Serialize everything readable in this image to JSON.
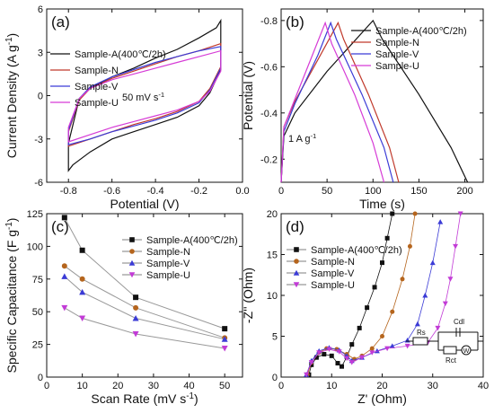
{
  "chart_data": [
    {
      "panel": "(a)",
      "type": "line",
      "xlabel": "Potential (V)",
      "ylabel": "Current Density (A g",
      "ylabel_sup": "-1",
      "ylabel_end": ")",
      "xlim": [
        -0.9,
        0.0
      ],
      "ylim": [
        -6,
        6
      ],
      "xticks": [
        "-0.8",
        "-0.6",
        "-0.4",
        "-0.2",
        "0.0"
      ],
      "yticks": [
        "-6",
        "-3",
        "0",
        "3",
        "6"
      ],
      "annotation": "50 mV s",
      "annotation_sup": "-1",
      "legend": [
        "Sample-A(400℃/2h)",
        "Sample-N",
        "Sample-V",
        "Sample-U"
      ],
      "series": [
        {
          "name": "Sample-A(400℃/2h)",
          "color": "#111111",
          "upper": [
            [
              -0.8,
              -3.3
            ],
            [
              -0.75,
              -0.2
            ],
            [
              -0.7,
              0.5
            ],
            [
              -0.6,
              1.3
            ],
            [
              -0.5,
              1.9
            ],
            [
              -0.4,
              2.6
            ],
            [
              -0.3,
              3.2
            ],
            [
              -0.2,
              4.0
            ],
            [
              -0.12,
              4.7
            ],
            [
              -0.1,
              5.2
            ]
          ],
          "lower": [
            [
              -0.1,
              1.8
            ],
            [
              -0.15,
              0.2
            ],
            [
              -0.2,
              -0.7
            ],
            [
              -0.3,
              -1.5
            ],
            [
              -0.4,
              -2.0
            ],
            [
              -0.5,
              -2.5
            ],
            [
              -0.6,
              -3.0
            ],
            [
              -0.7,
              -3.9
            ],
            [
              -0.78,
              -4.8
            ],
            [
              -0.8,
              -5.2
            ]
          ]
        },
        {
          "name": "Sample-N",
          "color": "#c0392b",
          "upper": [
            [
              -0.8,
              -2.5
            ],
            [
              -0.75,
              -0.3
            ],
            [
              -0.7,
              0.5
            ],
            [
              -0.6,
              1.2
            ],
            [
              -0.5,
              1.7
            ],
            [
              -0.4,
              2.2
            ],
            [
              -0.3,
              2.7
            ],
            [
              -0.2,
              3.1
            ],
            [
              -0.1,
              3.6
            ]
          ],
          "lower": [
            [
              -0.1,
              2.0
            ],
            [
              -0.15,
              0.5
            ],
            [
              -0.2,
              -0.4
            ],
            [
              -0.3,
              -1.1
            ],
            [
              -0.4,
              -1.6
            ],
            [
              -0.5,
              -2.0
            ],
            [
              -0.6,
              -2.5
            ],
            [
              -0.7,
              -3.0
            ],
            [
              -0.8,
              -3.5
            ]
          ]
        },
        {
          "name": "Sample-V",
          "color": "#3b3bd6",
          "upper": [
            [
              -0.8,
              -2.4
            ],
            [
              -0.75,
              -0.2
            ],
            [
              -0.7,
              0.6
            ],
            [
              -0.6,
              1.3
            ],
            [
              -0.5,
              1.8
            ],
            [
              -0.4,
              2.3
            ],
            [
              -0.3,
              2.7
            ],
            [
              -0.2,
              3.1
            ],
            [
              -0.1,
              3.4
            ]
          ],
          "lower": [
            [
              -0.1,
              1.9
            ],
            [
              -0.15,
              0.4
            ],
            [
              -0.2,
              -0.5
            ],
            [
              -0.3,
              -1.2
            ],
            [
              -0.4,
              -1.7
            ],
            [
              -0.5,
              -2.1
            ],
            [
              -0.6,
              -2.5
            ],
            [
              -0.7,
              -3.0
            ],
            [
              -0.8,
              -3.4
            ]
          ]
        },
        {
          "name": "Sample-U",
          "color": "#d63bd6",
          "upper": [
            [
              -0.8,
              -2.2
            ],
            [
              -0.75,
              -0.2
            ],
            [
              -0.7,
              0.5
            ],
            [
              -0.6,
              1.1
            ],
            [
              -0.5,
              1.5
            ],
            [
              -0.4,
              1.9
            ],
            [
              -0.3,
              2.3
            ],
            [
              -0.2,
              2.7
            ],
            [
              -0.1,
              3.1
            ]
          ],
          "lower": [
            [
              -0.1,
              1.7
            ],
            [
              -0.15,
              0.3
            ],
            [
              -0.2,
              -0.4
            ],
            [
              -0.3,
              -1.0
            ],
            [
              -0.4,
              -1.4
            ],
            [
              -0.5,
              -1.8
            ],
            [
              -0.6,
              -2.2
            ],
            [
              -0.7,
              -2.7
            ],
            [
              -0.8,
              -3.2
            ]
          ]
        }
      ]
    },
    {
      "panel": "(b)",
      "type": "line",
      "xlabel": "Time (s)",
      "ylabel": "Potential (V)",
      "xlim": [
        0,
        220
      ],
      "ylim": [
        -0.1,
        -0.85
      ],
      "xticks": [
        "0",
        "50",
        "100",
        "150",
        "200"
      ],
      "yticks": [
        "-0.2",
        "-0.4",
        "-0.6",
        "-0.8"
      ],
      "annotation": "1 A g",
      "annotation_sup": "-1",
      "legend": [
        "Sample-A(400℃/2h)",
        "Sample-N",
        "Sample-V",
        "Sample-U"
      ],
      "series": [
        {
          "name": "Sample-A(400℃/2h)",
          "color": "#111111",
          "points": [
            [
              0,
              -0.1
            ],
            [
              3,
              -0.3
            ],
            [
              15,
              -0.4
            ],
            [
              50,
              -0.58
            ],
            [
              100,
              -0.8
            ],
            [
              110,
              -0.72
            ],
            [
              150,
              -0.48
            ],
            [
              185,
              -0.25
            ],
            [
              203,
              -0.1
            ]
          ]
        },
        {
          "name": "Sample-N",
          "color": "#c0392b",
          "points": [
            [
              0,
              -0.1
            ],
            [
              3,
              -0.34
            ],
            [
              15,
              -0.45
            ],
            [
              40,
              -0.63
            ],
            [
              62,
              -0.79
            ],
            [
              68,
              -0.72
            ],
            [
              95,
              -0.48
            ],
            [
              118,
              -0.25
            ],
            [
              128,
              -0.1
            ]
          ]
        },
        {
          "name": "Sample-V",
          "color": "#3b3bd6",
          "points": [
            [
              0,
              -0.1
            ],
            [
              3,
              -0.32
            ],
            [
              15,
              -0.44
            ],
            [
              40,
              -0.65
            ],
            [
              54,
              -0.79
            ],
            [
              60,
              -0.72
            ],
            [
              88,
              -0.48
            ],
            [
              112,
              -0.25
            ],
            [
              122,
              -0.1
            ]
          ]
        },
        {
          "name": "Sample-U",
          "color": "#d63bd6",
          "points": [
            [
              0,
              -0.1
            ],
            [
              3,
              -0.34
            ],
            [
              15,
              -0.46
            ],
            [
              35,
              -0.66
            ],
            [
              48,
              -0.79
            ],
            [
              55,
              -0.7
            ],
            [
              80,
              -0.48
            ],
            [
              100,
              -0.27
            ],
            [
              112,
              -0.1
            ]
          ]
        }
      ]
    },
    {
      "panel": "(c)",
      "type": "line",
      "xlabel": "Scan Rate (mV s",
      "xlabel_sup": "-1",
      "xlabel_end": ")",
      "ylabel": "Specific Capacitance (F g",
      "ylabel_sup": "-1",
      "ylabel_end": ")",
      "xlim": [
        0,
        55
      ],
      "ylim": [
        0,
        125
      ],
      "xticks": [
        "0",
        "10",
        "20",
        "30",
        "40",
        "50"
      ],
      "yticks": [
        "0",
        "25",
        "50",
        "75",
        "100",
        "125"
      ],
      "x": [
        5,
        10,
        25,
        50
      ],
      "legend": [
        "Sample-A(400℃/2h)",
        "Sample-N",
        "Sample-V",
        "Sample-U"
      ],
      "series": [
        {
          "name": "Sample-A(400℃/2h)",
          "color": "#111111",
          "marker": "square",
          "values": [
            122,
            97,
            61,
            37
          ]
        },
        {
          "name": "Sample-N",
          "color": "#b5651d",
          "marker": "circle",
          "values": [
            85,
            75,
            53,
            30
          ]
        },
        {
          "name": "Sample-V",
          "color": "#3b3bd6",
          "marker": "triangle",
          "values": [
            77,
            65,
            45,
            29
          ]
        },
        {
          "name": "Sample-U",
          "color": "#c23bd6",
          "marker": "down-triangle",
          "values": [
            53,
            45,
            33,
            22
          ]
        }
      ]
    },
    {
      "panel": "(d)",
      "type": "scatter",
      "xlabel": "Z' (Ohm)",
      "ylabel": "-Z'' (Ohm)",
      "xlim": [
        0,
        40
      ],
      "ylim": [
        0,
        20
      ],
      "xticks": [
        "0",
        "10",
        "20",
        "30",
        "40"
      ],
      "yticks": [
        "0",
        "5",
        "10",
        "15",
        "20"
      ],
      "legend": [
        "Sample-A(400℃/2h)",
        "Sample-N",
        "Sample-V",
        "Sample-U"
      ],
      "circuit_labels": [
        "Rs",
        "Cdl",
        "Rct",
        "W"
      ],
      "series": [
        {
          "name": "Sample-A(400℃/2h)",
          "color": "#111111",
          "marker": "square",
          "points": [
            [
              5.5,
              0.3
            ],
            [
              6,
              1.5
            ],
            [
              7,
              2.4
            ],
            [
              8.5,
              2.8
            ],
            [
              10,
              2.6
            ],
            [
              11.2,
              1.7
            ],
            [
              12,
              1.3
            ],
            [
              13,
              2.5
            ],
            [
              14,
              4
            ],
            [
              15.5,
              6
            ],
            [
              17,
              8.5
            ],
            [
              18.5,
              11
            ],
            [
              20,
              14
            ],
            [
              21,
              17
            ],
            [
              22,
              20
            ]
          ]
        },
        {
          "name": "Sample-N",
          "color": "#b5651d",
          "marker": "circle",
          "points": [
            [
              5.2,
              0.3
            ],
            [
              6,
              1.8
            ],
            [
              7.5,
              3
            ],
            [
              9,
              3.5
            ],
            [
              11,
              3.4
            ],
            [
              13,
              2.8
            ],
            [
              14.5,
              2.2
            ],
            [
              16,
              2.6
            ],
            [
              18,
              3.5
            ],
            [
              20,
              5
            ],
            [
              22,
              8
            ],
            [
              24,
              12
            ],
            [
              25.5,
              16
            ],
            [
              26.5,
              20
            ]
          ]
        },
        {
          "name": "Sample-V",
          "color": "#3b3bd6",
          "marker": "triangle",
          "points": [
            [
              5,
              0.3
            ],
            [
              6,
              2
            ],
            [
              7.5,
              3.2
            ],
            [
              9.5,
              3.6
            ],
            [
              11.5,
              3.3
            ],
            [
              13,
              2.6
            ],
            [
              14,
              2
            ],
            [
              16,
              2.4
            ],
            [
              19,
              3.2
            ],
            [
              22,
              3.8
            ],
            [
              25,
              4.5
            ],
            [
              27,
              6.5
            ],
            [
              28.5,
              10
            ],
            [
              30,
              14
            ],
            [
              31.5,
              19
            ]
          ]
        },
        {
          "name": "Sample-U",
          "color": "#c23bd6",
          "marker": "down-triangle",
          "points": [
            [
              5,
              0.3
            ],
            [
              6,
              1.8
            ],
            [
              7.5,
              3
            ],
            [
              9.5,
              3.4
            ],
            [
              11.5,
              3.1
            ],
            [
              13,
              2.3
            ],
            [
              14,
              1.8
            ],
            [
              16,
              2.4
            ],
            [
              18,
              3.0
            ],
            [
              21,
              3.5
            ],
            [
              25,
              3.8
            ],
            [
              29,
              4.2
            ],
            [
              31,
              6
            ],
            [
              32.5,
              9
            ],
            [
              33.5,
              12
            ],
            [
              34.5,
              16
            ],
            [
              35.5,
              20
            ]
          ]
        }
      ]
    }
  ]
}
